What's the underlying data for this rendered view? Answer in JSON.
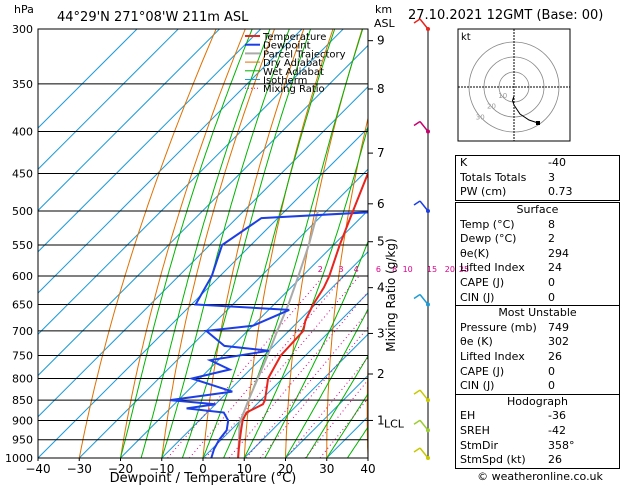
{
  "header": {
    "location": "44°29'N  271°08'W  211m  ASL",
    "datetime": "27.10.2021  12GMT  (Base: 00)",
    "hpa_label": "hPa",
    "km_label": "km",
    "asl_label": "ASL"
  },
  "chart_data": {
    "type": "skew-t",
    "xlabel": "Dewpoint / Temperature (°C)",
    "ylabel_right": "Mixing Ratio (g/kg)",
    "xticks": [
      -40,
      -30,
      -20,
      -10,
      0,
      10,
      20,
      30,
      40
    ],
    "xtick_labels": [
      "−40",
      "−30",
      "−20",
      "−10",
      "0",
      "10",
      "20",
      "30",
      "40"
    ],
    "xlim": [
      -40,
      40
    ],
    "pressure_levels": [
      300,
      350,
      400,
      450,
      500,
      550,
      600,
      650,
      700,
      750,
      800,
      850,
      900,
      950,
      1000
    ],
    "ylim": [
      1000,
      300
    ],
    "km_ticks": [
      {
        "label": "9",
        "p": 310
      },
      {
        "label": "8",
        "p": 355
      },
      {
        "label": "7",
        "p": 425
      },
      {
        "label": "6",
        "p": 490
      },
      {
        "label": "5",
        "p": 545
      },
      {
        "label": "4",
        "p": 620
      },
      {
        "label": "3",
        "p": 705
      },
      {
        "label": "2",
        "p": 790
      },
      {
        "label": "1",
        "p": 900
      }
    ],
    "lcl_label": "LCL",
    "lcl_p": 908,
    "mixing_ratio_labels": [
      "2",
      "3",
      "4",
      "6",
      "8",
      "10",
      "15",
      "20",
      "25"
    ],
    "mixing_ratio_values": [
      2,
      3,
      4,
      6,
      8,
      10,
      15,
      20,
      25
    ],
    "legend": [
      "Temperature",
      "Dewpoint",
      "Parcel Trajectory",
      "Dry Adiabat",
      "Wet Adiabat",
      "Isotherm",
      "Mixing Ratio"
    ],
    "colors": {
      "temperature": "#e8241c",
      "dewpoint": "#1c3ee6",
      "parcel": "#aaaaaa",
      "dry_adiabat": "#e07000",
      "wet_adiabat": "#00b400",
      "isotherm": "#1e9bd7",
      "mixing_ratio": "#e0008c"
    },
    "temperature": [
      {
        "p": 1000,
        "t": 8.5
      },
      {
        "p": 975,
        "t": 6.5
      },
      {
        "p": 950,
        "t": 4.5
      },
      {
        "p": 925,
        "t": 2.5
      },
      {
        "p": 900,
        "t": 0.5
      },
      {
        "p": 880,
        "t": -0.5
      },
      {
        "p": 860,
        "t": 1.5
      },
      {
        "p": 850,
        "t": 1.0
      },
      {
        "p": 800,
        "t": -3.5
      },
      {
        "p": 750,
        "t": -6.0
      },
      {
        "p": 700,
        "t": -6.5
      },
      {
        "p": 680,
        "t": -8.5
      },
      {
        "p": 650,
        "t": -10.5
      },
      {
        "p": 620,
        "t": -12.0
      },
      {
        "p": 600,
        "t": -13.5
      },
      {
        "p": 550,
        "t": -18.5
      },
      {
        "p": 500,
        "t": -23.5
      },
      {
        "p": 450,
        "t": -29.0
      },
      {
        "p": 400,
        "t": -36.0
      },
      {
        "p": 350,
        "t": -42.5
      },
      {
        "p": 300,
        "t": -50.5
      }
    ],
    "dewpoint": [
      {
        "p": 1000,
        "t": 2.0
      },
      {
        "p": 975,
        "t": 0.5
      },
      {
        "p": 950,
        "t": -0.5
      },
      {
        "p": 925,
        "t": -1.0
      },
      {
        "p": 900,
        "t": -3.0
      },
      {
        "p": 880,
        "t": -6.0
      },
      {
        "p": 870,
        "t": -16.0
      },
      {
        "p": 860,
        "t": -10.0
      },
      {
        "p": 850,
        "t": -22.0
      },
      {
        "p": 830,
        "t": -9.0
      },
      {
        "p": 800,
        "t": -22.0
      },
      {
        "p": 780,
        "t": -15.0
      },
      {
        "p": 760,
        "t": -22.0
      },
      {
        "p": 740,
        "t": -10.0
      },
      {
        "p": 730,
        "t": -22.0
      },
      {
        "p": 700,
        "t": -30.0
      },
      {
        "p": 690,
        "t": -20.0
      },
      {
        "p": 660,
        "t": -15.0
      },
      {
        "p": 650,
        "t": -39.0
      },
      {
        "p": 600,
        "t": -42.0
      },
      {
        "p": 550,
        "t": -47.0
      },
      {
        "p": 510,
        "t": -44.0
      },
      {
        "p": 500,
        "t": -14.0
      },
      {
        "p": 450,
        "t": -19.0
      },
      {
        "p": 420,
        "t": -26.0
      },
      {
        "p": 400,
        "t": -22.0
      },
      {
        "p": 370,
        "t": -42.0
      },
      {
        "p": 340,
        "t": -47.0
      },
      {
        "p": 320,
        "t": -46.0
      },
      {
        "p": 300,
        "t": -43.0
      }
    ],
    "parcel": [
      {
        "p": 1000,
        "t": 8.5
      },
      {
        "p": 950,
        "t": 4.3
      },
      {
        "p": 908,
        "t": 0.5
      },
      {
        "p": 850,
        "t": -3.0
      },
      {
        "p": 800,
        "t": -6.0
      },
      {
        "p": 750,
        "t": -9.2
      },
      {
        "p": 700,
        "t": -12.8
      },
      {
        "p": 650,
        "t": -16.5
      },
      {
        "p": 600,
        "t": -21.0
      },
      {
        "p": 550,
        "t": -26.0
      },
      {
        "p": 500,
        "t": -32.0
      }
    ],
    "hodograph": {
      "label": "kt",
      "ring_labels": [
        "10",
        "20",
        "30"
      ],
      "points": [
        {
          "u": 0,
          "v": -6
        },
        {
          "u": -1,
          "v": -9
        },
        {
          "u": 0,
          "v": -12
        },
        {
          "u": 4,
          "v": -18
        },
        {
          "u": 10,
          "v": -22
        },
        {
          "u": 16,
          "v": -24
        }
      ]
    },
    "wind_barb_levels": [
      300,
      400,
      500,
      650,
      850,
      925,
      1000
    ]
  },
  "indices": [
    {
      "label": "K",
      "value": "-40"
    },
    {
      "label": "Totals Totals",
      "value": "3"
    },
    {
      "label": "PW (cm)",
      "value": "0.73"
    }
  ],
  "surface": {
    "title": "Surface",
    "rows": [
      {
        "label": "Temp (°C)",
        "value": "8"
      },
      {
        "label": "Dewp (°C)",
        "value": "2"
      },
      {
        "label": "θe(K)",
        "value": "294"
      },
      {
        "label": "Lifted Index",
        "value": "24"
      },
      {
        "label": "CAPE (J)",
        "value": "0"
      },
      {
        "label": "CIN (J)",
        "value": "0"
      }
    ]
  },
  "most_unstable": {
    "title": "Most Unstable",
    "rows": [
      {
        "label": "Pressure (mb)",
        "value": "749"
      },
      {
        "label": "θe (K)",
        "value": "302"
      },
      {
        "label": "Lifted Index",
        "value": "26"
      },
      {
        "label": "CAPE (J)",
        "value": "0"
      },
      {
        "label": "CIN (J)",
        "value": "0"
      }
    ]
  },
  "hodograph_stats": {
    "title": "Hodograph",
    "rows": [
      {
        "label": "EH",
        "value": "-36"
      },
      {
        "label": "SREH",
        "value": "-42"
      },
      {
        "label": "StmDir",
        "value": "358°"
      },
      {
        "label": "StmSpd (kt)",
        "value": "26"
      }
    ]
  },
  "copyright": "© weatheronline.co.uk"
}
